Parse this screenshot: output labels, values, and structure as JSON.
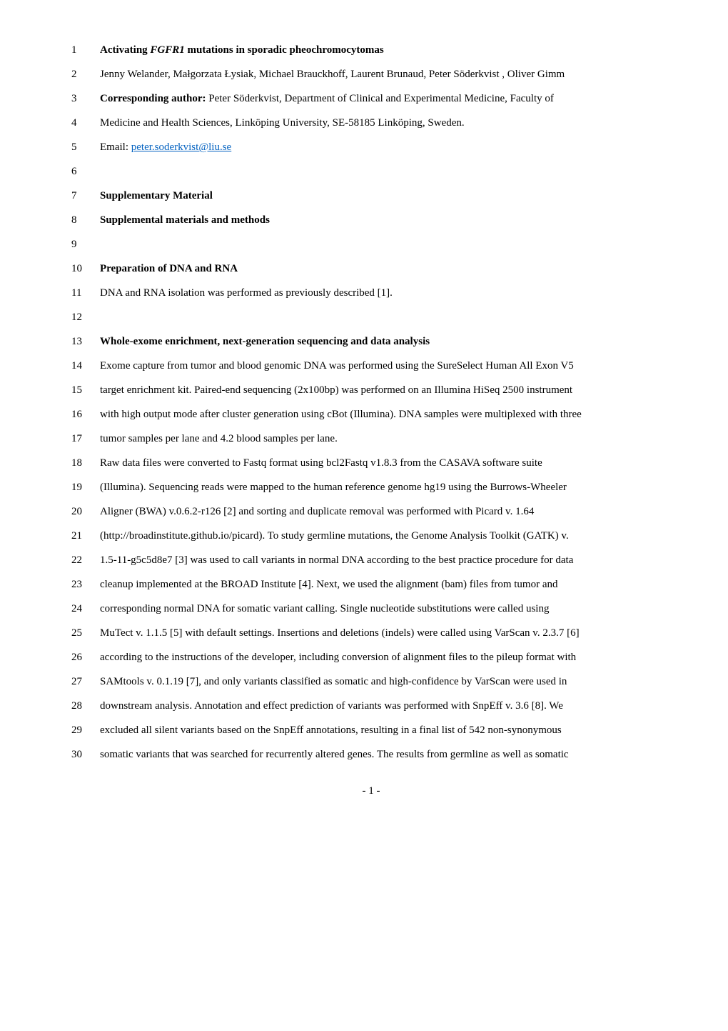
{
  "lines": {
    "l1_a": "Activating ",
    "l1_b": "FGFR1",
    "l1_c": " mutations in sporadic pheochromocytomas",
    "l2": "Jenny Welander, Małgorzata Łysiak, Michael Brauckhoff, Laurent Brunaud, Peter Söderkvist , Oliver Gimm",
    "l3_a": "Corresponding author: ",
    "l3_b": "Peter Söderkvist, Department of Clinical and Experimental Medicine, Faculty of",
    "l4": "Medicine and Health Sciences, Linköping University, SE-58185 Linköping, Sweden.",
    "l5_a": "Email: ",
    "l5_b": "peter.soderkvist@liu.se",
    "l7": "Supplementary Material",
    "l8": "Supplemental materials and methods",
    "l10": "Preparation of DNA and RNA",
    "l11": "DNA and RNA isolation was performed as previously described [1].",
    "l13": "Whole-exome enrichment, next-generation sequencing and data analysis",
    "l14": "Exome capture from tumor and blood genomic DNA was performed using the SureSelect Human All Exon V5",
    "l15": "target enrichment kit. Paired-end sequencing (2x100bp) was performed on an Illumina HiSeq 2500 instrument",
    "l16": "with high output mode after cluster generation using cBot (Illumina). DNA samples were multiplexed with three",
    "l17": "tumor samples per lane and 4.2 blood samples per lane.",
    "l18": "Raw data files were converted to Fastq format using bcl2Fastq v1.8.3 from the CASAVA software suite",
    "l19": "(Illumina). Sequencing reads were mapped to the human reference genome hg19 using the Burrows-Wheeler",
    "l20": "Aligner (BWA) v.0.6.2-r126 [2] and sorting and duplicate removal was performed with Picard v. 1.64",
    "l21": "(http://broadinstitute.github.io/picard). To study germline mutations, the Genome Analysis Toolkit (GATK) v.",
    "l22": "1.5-11-g5c5d8e7 [3] was used to call variants in normal DNA according to the best practice procedure for data",
    "l23": "cleanup implemented at the BROAD Institute [4]. Next, we used the alignment (bam) files from tumor and",
    "l24": "corresponding normal DNA for somatic variant calling. Single nucleotide substitutions were called using",
    "l25": "MuTect v. 1.1.5 [5] with default settings. Insertions and deletions (indels) were called using VarScan v. 2.3.7 [6]",
    "l26": "according to the instructions of the developer, including conversion of alignment files to the pileup format with",
    "l27": "SAMtools v. 0.1.19 [7], and only variants classified as somatic and high-confidence by VarScan were used in",
    "l28": "downstream analysis. Annotation and effect prediction of variants was performed with SnpEff v. 3.6 [8]. We",
    "l29": "excluded all silent variants based on the SnpEff annotations, resulting in a final list of 542 non-synonymous",
    "l30": "somatic variants that was searched for recurrently altered genes. The results from germline as well as somatic"
  },
  "nums": {
    "n1": "1",
    "n2": "2",
    "n3": "3",
    "n4": "4",
    "n5": "5",
    "n6": "6",
    "n7": "7",
    "n8": "8",
    "n9": "9",
    "n10": "10",
    "n11": "11",
    "n12": "12",
    "n13": "13",
    "n14": "14",
    "n15": "15",
    "n16": "16",
    "n17": "17",
    "n18": "18",
    "n19": "19",
    "n20": "20",
    "n21": "21",
    "n22": "22",
    "n23": "23",
    "n24": "24",
    "n25": "25",
    "n26": "26",
    "n27": "27",
    "n28": "28",
    "n29": "29",
    "n30": "30"
  },
  "pagenum": "- 1 -"
}
